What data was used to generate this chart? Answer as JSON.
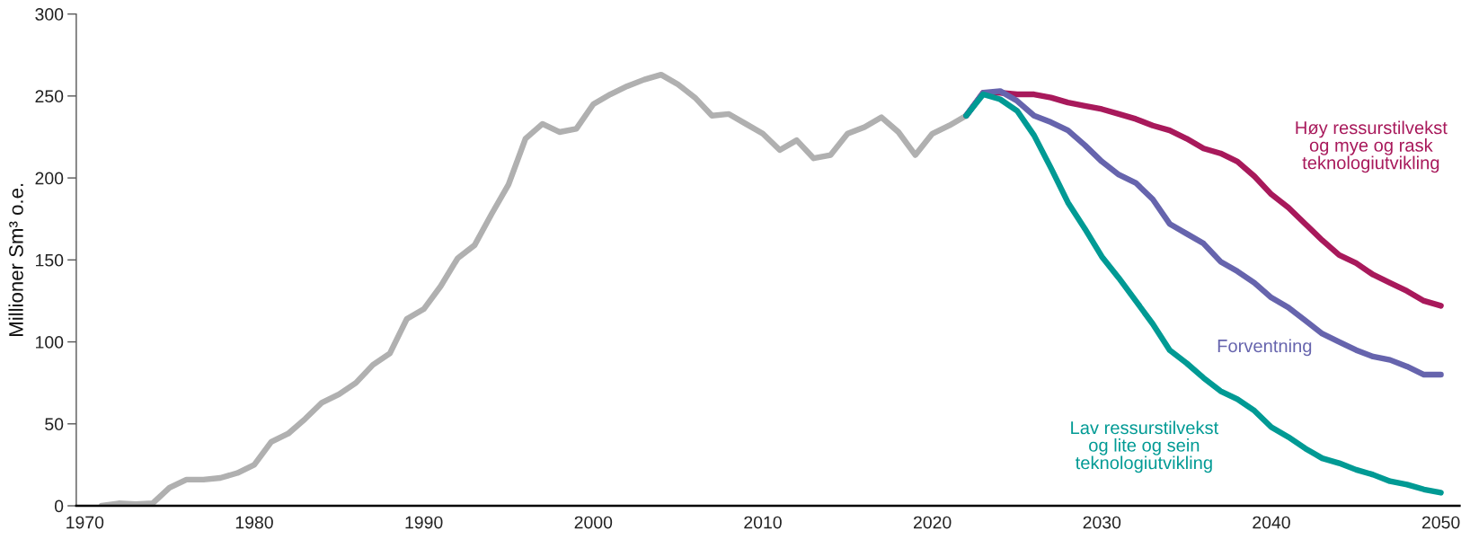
{
  "chart_data": {
    "type": "line",
    "ylabel": "Millioner Sm³ o.e.",
    "xlim": [
      1969.5,
      2051.1
    ],
    "xticks": [
      1970,
      1980,
      1990,
      2000,
      2010,
      2020,
      2030,
      2040,
      2050
    ],
    "ylim": [
      0,
      300
    ],
    "yticks": [
      0,
      50,
      100,
      150,
      200,
      250,
      300
    ],
    "line_style": "solid",
    "series": [
      {
        "color": "#b0b0b0",
        "x": [
          1971,
          1972,
          1973,
          1974,
          1975,
          1976,
          1977,
          1978,
          1979,
          1980,
          1981,
          1982,
          1983,
          1984,
          1985,
          1986,
          1987,
          1988,
          1989,
          1990,
          1991,
          1992,
          1993,
          1994,
          1995,
          1996,
          1997,
          1998,
          1999,
          2000,
          2001,
          2002,
          2003,
          2004,
          2005,
          2006,
          2007,
          2008,
          2009,
          2010,
          2011,
          2012,
          2013,
          2014,
          2015,
          2016,
          2017,
          2018,
          2019,
          2020,
          2021,
          2022
        ],
        "values": [
          0,
          1.5,
          1,
          1.5,
          11,
          16,
          16,
          17,
          20,
          25,
          39,
          44,
          53,
          63,
          68,
          75,
          86,
          93,
          114,
          120,
          134,
          151,
          159,
          178,
          196,
          224,
          233,
          228,
          230,
          245,
          251,
          256,
          260,
          263,
          257,
          249,
          238,
          239,
          233,
          227,
          217,
          223,
          212,
          214,
          227,
          231,
          237,
          228,
          214,
          227,
          232,
          238
        ]
      },
      {
        "name": "Høy ressurstilvekst\nog mye og rask\nteknologiutvikling",
        "color": "#a8195b",
        "x": [
          2022,
          2023,
          2024,
          2025,
          2026,
          2027,
          2028,
          2029,
          2030,
          2031,
          2032,
          2033,
          2034,
          2035,
          2036,
          2037,
          2038,
          2039,
          2040,
          2041,
          2042,
          2043,
          2044,
          2045,
          2046,
          2047,
          2048,
          2049,
          2050
        ],
        "values": [
          238,
          252,
          252,
          251,
          251,
          249,
          246,
          244,
          242,
          239,
          236,
          232,
          229,
          224,
          218,
          215,
          210,
          201,
          190,
          182,
          172,
          162,
          153,
          148,
          141,
          136,
          131,
          125,
          122
        ]
      },
      {
        "name": "Forventning",
        "color": "#6664ad",
        "x": [
          2022,
          2023,
          2024,
          2025,
          2026,
          2027,
          2028,
          2029,
          2030,
          2031,
          2032,
          2033,
          2034,
          2035,
          2036,
          2037,
          2038,
          2039,
          2040,
          2041,
          2042,
          2043,
          2044,
          2045,
          2046,
          2047,
          2048,
          2049,
          2050
        ],
        "values": [
          238,
          252,
          253,
          247,
          238,
          234,
          229,
          220,
          210,
          202,
          197,
          187,
          172,
          166,
          160,
          149,
          143,
          136,
          127,
          121,
          113,
          105,
          100,
          95,
          91,
          89,
          85,
          80,
          80
        ]
      },
      {
        "name": "Lav ressurstilvekst\nog lite og sein\nteknologiutvikling",
        "color": "#009a94",
        "x": [
          2022,
          2023,
          2024,
          2025,
          2026,
          2027,
          2028,
          2029,
          2030,
          2031,
          2032,
          2033,
          2034,
          2035,
          2036,
          2037,
          2038,
          2039,
          2040,
          2041,
          2042,
          2043,
          2044,
          2045,
          2046,
          2047,
          2048,
          2049,
          2050
        ],
        "values": [
          238,
          251,
          248,
          241,
          226,
          206,
          185,
          169,
          152,
          139,
          125,
          111,
          95,
          87,
          78,
          70,
          65,
          58,
          48,
          42,
          35,
          29,
          26,
          22,
          19,
          15,
          13,
          10,
          8
        ]
      }
    ]
  }
}
